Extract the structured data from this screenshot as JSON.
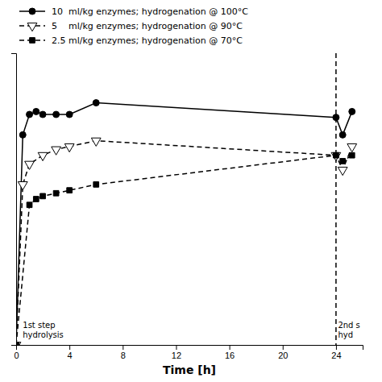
{
  "chart_data": {
    "type": "line",
    "xlabel": "Time [h]",
    "xlim": [
      0,
      26
    ],
    "ylim": [
      0,
      100
    ],
    "xticks": [
      0,
      4,
      8,
      12,
      16,
      20,
      24
    ],
    "tick_labels": "x",
    "legend": "upper left",
    "series": [
      {
        "name": "10  ml/kg enzymes; hydrogenation @ 100°C",
        "color": "black",
        "marker": "circle",
        "line_style": "solid",
        "x": [
          0,
          0.5,
          1,
          1.5,
          2,
          3,
          4,
          6,
          24,
          24.5,
          25.2
        ],
        "values": [
          0,
          72,
          79,
          80,
          79,
          79,
          79,
          83,
          78,
          72,
          80
        ]
      },
      {
        "name": "5    ml/kg enzymes; hydrogenation @ 90°C",
        "color": "black",
        "marker": "open-triangle-down",
        "line_style": "dashed",
        "x": [
          0,
          0.5,
          1,
          2,
          3,
          4,
          6,
          24,
          24.5,
          25.2
        ],
        "values": [
          0,
          55,
          62,
          65,
          67,
          68,
          70,
          65,
          60,
          68
        ]
      },
      {
        "name": "2.5 ml/kg enzymes; hydrogenation @ 70°C",
        "color": "black",
        "marker": "square",
        "line_style": "dashed",
        "x": [
          0,
          1,
          1.5,
          2,
          3,
          4,
          6,
          24,
          24.5,
          25.2
        ],
        "values": [
          0,
          48,
          50,
          51,
          52,
          53,
          55,
          65,
          63,
          65
        ]
      }
    ],
    "vlines": [
      24
    ],
    "annotations": [
      {
        "text": "1st step\nhydrolysis",
        "x": 0.5,
        "y": 2
      },
      {
        "text": "2nd s\nhyd",
        "x": 24.15,
        "y": 2
      }
    ]
  }
}
